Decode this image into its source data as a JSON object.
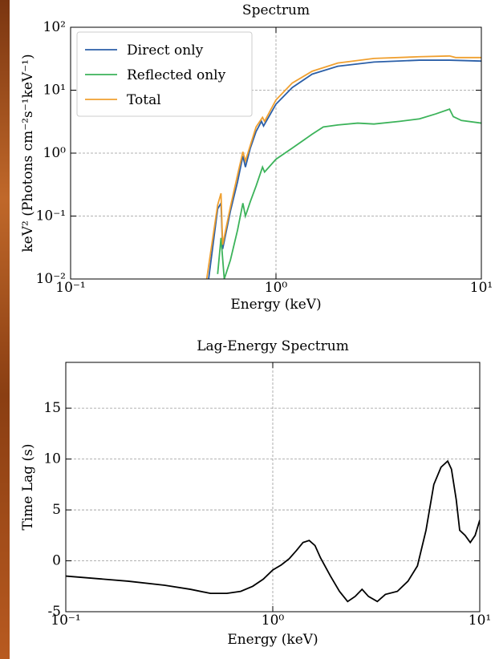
{
  "chart_data": [
    {
      "type": "line",
      "title": "Spectrum",
      "xlabel": "Energy (keV)",
      "ylabel": "keV² (Photons cm⁻²s⁻¹keV⁻¹)",
      "xscale": "log",
      "yscale": "log",
      "grid": true,
      "legend": "upper left",
      "xlim": [
        0.1,
        10
      ],
      "ylim": [
        0.01,
        100
      ],
      "xticks": [
        {
          "value": 0.1,
          "label": "10⁻¹"
        },
        {
          "value": 1,
          "label": "10⁰"
        },
        {
          "value": 10,
          "label": "10¹"
        }
      ],
      "yticks": [
        {
          "value": 0.01,
          "label": "10⁻²"
        },
        {
          "value": 0.1,
          "label": "10⁻¹"
        },
        {
          "value": 1,
          "label": "10⁰"
        },
        {
          "value": 10,
          "label": "10¹"
        },
        {
          "value": 100,
          "label": "10²"
        }
      ],
      "series": [
        {
          "name": "Direct only",
          "color": "#2b5fa8",
          "x": [
            0.47,
            0.52,
            0.54,
            0.55,
            0.6,
            0.65,
            0.69,
            0.71,
            0.75,
            0.8,
            0.85,
            0.87,
            1.0,
            1.2,
            1.5,
            2,
            3,
            5,
            7,
            10
          ],
          "values": [
            0.01,
            0.13,
            0.16,
            0.03,
            0.12,
            0.35,
            0.9,
            0.6,
            1.2,
            2.2,
            3.2,
            2.7,
            6,
            11,
            18,
            24,
            28,
            30,
            30,
            29
          ]
        },
        {
          "name": "Reflected only",
          "color": "#3cb35a",
          "x": [
            0.52,
            0.54,
            0.56,
            0.6,
            0.65,
            0.69,
            0.71,
            0.75,
            0.8,
            0.86,
            0.88,
            1.0,
            1.2,
            1.5,
            1.7,
            2,
            2.5,
            3,
            4,
            5,
            6,
            7,
            7.3,
            8,
            10
          ],
          "values": [
            0.012,
            0.045,
            0.01,
            0.02,
            0.06,
            0.16,
            0.1,
            0.17,
            0.3,
            0.6,
            0.5,
            0.8,
            1.2,
            2.0,
            2.6,
            2.8,
            3.0,
            2.9,
            3.2,
            3.5,
            4.2,
            5.0,
            3.8,
            3.3,
            3.0
          ]
        },
        {
          "name": "Total",
          "color": "#f0a030",
          "x": [
            0.46,
            0.52,
            0.54,
            0.55,
            0.6,
            0.65,
            0.69,
            0.71,
            0.8,
            0.86,
            0.88,
            1.0,
            1.2,
            1.5,
            2,
            3,
            5,
            7,
            7.5,
            10
          ],
          "values": [
            0.01,
            0.15,
            0.23,
            0.035,
            0.14,
            0.45,
            1.05,
            0.75,
            2.6,
            3.7,
            3.2,
            7,
            13,
            20,
            27,
            32,
            34,
            35,
            33,
            33
          ]
        }
      ]
    },
    {
      "type": "line",
      "title": "Lag-Energy Spectrum",
      "xlabel": "Energy (keV)",
      "ylabel": "Time Lag (s)",
      "xscale": "log",
      "grid": true,
      "xlim": [
        0.1,
        10
      ],
      "ylim": [
        -5,
        19.5
      ],
      "xticks": [
        {
          "value": 0.1,
          "label": "10⁻¹"
        },
        {
          "value": 1,
          "label": "10⁰"
        },
        {
          "value": 10,
          "label": "10¹"
        }
      ],
      "yticks": [
        -5,
        0,
        5,
        10,
        15
      ],
      "series": [
        {
          "color": "#000000",
          "x": [
            0.1,
            0.2,
            0.3,
            0.4,
            0.5,
            0.6,
            0.7,
            0.8,
            0.9,
            1.0,
            1.1,
            1.2,
            1.3,
            1.4,
            1.5,
            1.6,
            1.7,
            1.9,
            2.1,
            2.3,
            2.5,
            2.7,
            2.9,
            3.2,
            3.5,
            4.0,
            4.5,
            5.0,
            5.5,
            6.0,
            6.5,
            7.0,
            7.3,
            7.7,
            8.0,
            8.5,
            9.0,
            9.5,
            10
          ],
          "values": [
            -1.5,
            -2.0,
            -2.4,
            -2.8,
            -3.2,
            -3.2,
            -3.0,
            -2.5,
            -1.8,
            -0.9,
            -0.4,
            0.2,
            1.0,
            1.8,
            2.0,
            1.5,
            0.3,
            -1.5,
            -3.0,
            -4.0,
            -3.5,
            -2.8,
            -3.5,
            -4.0,
            -3.3,
            -3.0,
            -2.0,
            -0.5,
            3.0,
            7.5,
            9.2,
            9.8,
            9.0,
            6.0,
            3.0,
            2.5,
            1.8,
            2.5,
            4.0
          ]
        }
      ]
    }
  ]
}
